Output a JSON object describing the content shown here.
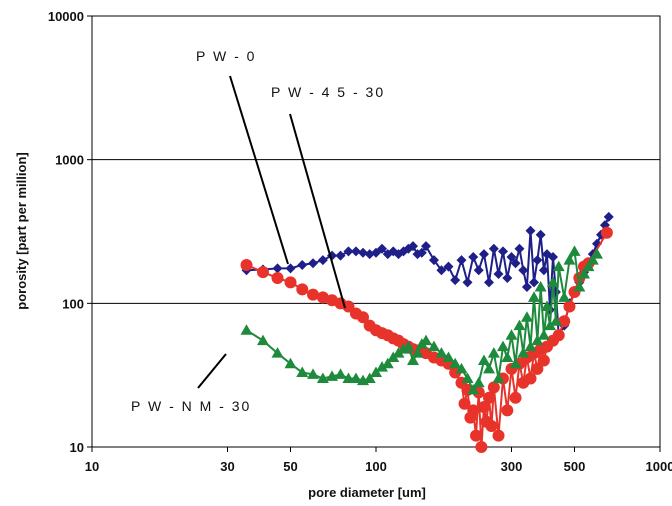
{
  "chart_data": {
    "type": "scatter",
    "title": "",
    "xlabel": "pore diameter [um]",
    "ylabel": "porosity [part per million]",
    "x_scale": "log",
    "y_scale": "log",
    "xlim": [
      10,
      1000
    ],
    "ylim": [
      10,
      10000
    ],
    "x_ticks": [
      "10",
      "30",
      "50",
      "100",
      "300",
      "500",
      "1000"
    ],
    "x_tick_values": [
      10,
      30,
      50,
      100,
      300,
      500,
      1000
    ],
    "y_ticks": [
      "10",
      "100",
      "1000",
      "10000"
    ],
    "y_tick_values": [
      10,
      100,
      1000,
      10000
    ],
    "grid": "horizontal",
    "legend": "none",
    "series": [
      {
        "name": "P W - 0",
        "marker": "diamond",
        "color": "#1f1f8a",
        "x": [
          35,
          40,
          45,
          50,
          55,
          60,
          65,
          70,
          75,
          80,
          85,
          90,
          95,
          100,
          105,
          110,
          115,
          120,
          125,
          130,
          135,
          140,
          145,
          150,
          160,
          170,
          180,
          190,
          200,
          210,
          220,
          230,
          240,
          250,
          260,
          270,
          280,
          290,
          300,
          310,
          320,
          330,
          340,
          350,
          360,
          370,
          380,
          390,
          400,
          410,
          420,
          430,
          440,
          460,
          480,
          500,
          520,
          540,
          560,
          580,
          600,
          620,
          640,
          660
        ],
        "y": [
          170,
          172,
          175,
          175,
          185,
          190,
          200,
          215,
          215,
          230,
          230,
          225,
          220,
          225,
          240,
          220,
          230,
          220,
          230,
          240,
          250,
          220,
          225,
          250,
          200,
          170,
          180,
          145,
          200,
          140,
          210,
          170,
          220,
          140,
          240,
          160,
          230,
          150,
          210,
          190,
          240,
          170,
          130,
          320,
          140,
          200,
          300,
          170,
          220,
          90,
          210,
          120,
          60,
          70,
          100,
          120,
          140,
          165,
          190,
          220,
          260,
          300,
          350,
          400
        ]
      },
      {
        "name": "P W - 4 5 - 30",
        "marker": "circle",
        "color": "#e8332a",
        "x": [
          35,
          40,
          45,
          50,
          55,
          60,
          65,
          70,
          75,
          80,
          85,
          90,
          95,
          100,
          105,
          110,
          115,
          120,
          125,
          130,
          135,
          140,
          145,
          150,
          160,
          170,
          180,
          190,
          200,
          205,
          210,
          215,
          220,
          225,
          230,
          235,
          240,
          245,
          250,
          255,
          260,
          270,
          280,
          290,
          300,
          310,
          320,
          330,
          340,
          350,
          360,
          370,
          380,
          390,
          400,
          420,
          440,
          460,
          480,
          500,
          520,
          540,
          560,
          650
        ],
        "y": [
          185,
          165,
          150,
          140,
          125,
          115,
          110,
          105,
          100,
          95,
          85,
          80,
          70,
          65,
          62,
          60,
          57,
          55,
          52,
          50,
          48,
          47,
          46,
          45,
          42,
          40,
          38,
          33,
          28,
          20,
          25,
          16,
          18,
          12,
          24,
          10,
          19,
          15,
          22,
          14,
          26,
          12,
          30,
          18,
          35,
          22,
          38,
          28,
          42,
          30,
          45,
          35,
          48,
          40,
          50,
          55,
          60,
          75,
          95,
          120,
          150,
          180,
          190,
          310
        ]
      },
      {
        "name": "P W - N M - 30",
        "marker": "triangle",
        "color": "#1e8a3c",
        "x": [
          35,
          40,
          45,
          50,
          55,
          60,
          65,
          70,
          75,
          80,
          85,
          90,
          95,
          100,
          105,
          110,
          115,
          120,
          125,
          130,
          135,
          140,
          145,
          150,
          160,
          170,
          180,
          190,
          200,
          210,
          220,
          230,
          240,
          250,
          260,
          270,
          280,
          290,
          300,
          310,
          320,
          330,
          340,
          350,
          360,
          370,
          380,
          390,
          400,
          410,
          420,
          430,
          440,
          460,
          480,
          500,
          520,
          540,
          560,
          580,
          600
        ],
        "y": [
          65,
          55,
          45,
          38,
          33,
          32,
          30,
          31,
          32,
          30,
          30,
          29,
          30,
          33,
          36,
          38,
          42,
          45,
          48,
          50,
          40,
          45,
          52,
          55,
          50,
          45,
          42,
          38,
          35,
          30,
          25,
          28,
          40,
          35,
          45,
          30,
          50,
          42,
          60,
          38,
          70,
          45,
          80,
          50,
          110,
          55,
          130,
          60,
          95,
          70,
          140,
          75,
          180,
          110,
          200,
          230,
          130,
          160,
          180,
          200,
          220
        ]
      }
    ],
    "annotations": [
      "P W - 0",
      "P W - 4 5 - 30",
      "P W - N M - 30"
    ]
  }
}
